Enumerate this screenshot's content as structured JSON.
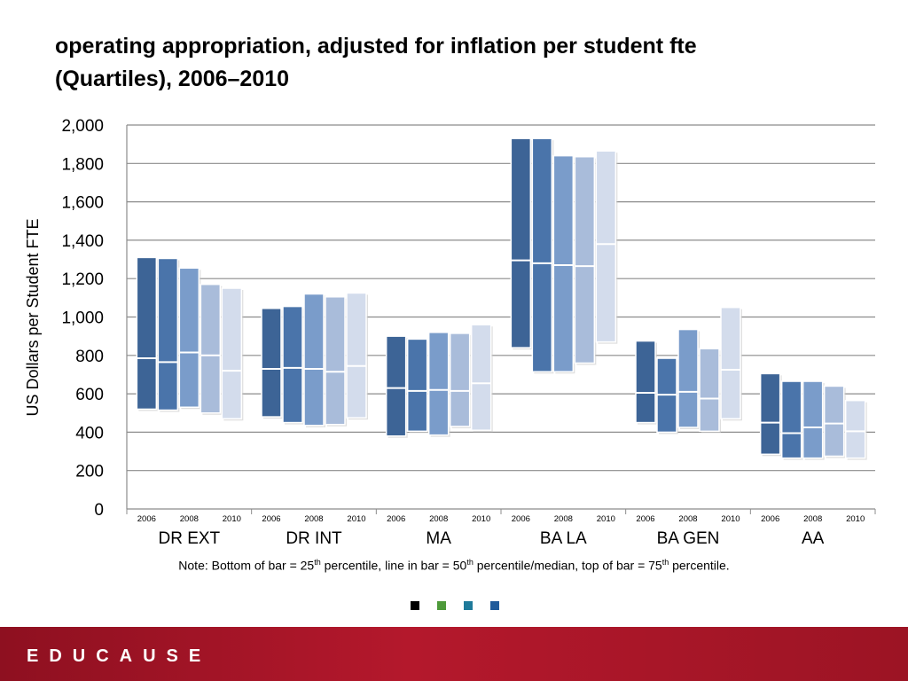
{
  "slide": {
    "title_line1": "operating appropriation, adjusted for inflation per student fte",
    "title_line2": "(Quartiles), 2006–2010",
    "note": {
      "prefix": "Note:  Bottom of bar = 25",
      "sup1": "th",
      "mid1": " percentile, line in bar = 50",
      "sup2": "th",
      "mid2": " percentile/median, top of bar = 75",
      "sup3": "th",
      "suffix": " percentile."
    },
    "legend_colors": [
      "#000000",
      "#4e9a3a",
      "#1f7a9a",
      "#1f5a9a"
    ],
    "footer_logo": "EDUCAUSE",
    "footer_color": "#b4182c"
  },
  "chart_data": {
    "type": "box",
    "ylabel": "US Dollars per Student FTE",
    "ylim": [
      0,
      2000
    ],
    "yticks": [
      0,
      200,
      400,
      600,
      800,
      1000,
      1200,
      1400,
      1600,
      1800,
      2000
    ],
    "ytick_labels": [
      "0",
      "200",
      "400",
      "600",
      "800",
      "1,000",
      "1,200",
      "1,400",
      "1,600",
      "1,800",
      "2,000"
    ],
    "grid": true,
    "year_colors": [
      "#3d6496",
      "#4a74aa",
      "#7a9cca",
      "#a9bcda",
      "#d3dcec"
    ],
    "groups": [
      {
        "name": "DR EXT",
        "year_labels": [
          "2006",
          "2008",
          "2010"
        ],
        "bars": [
          {
            "year": "2006",
            "q1": 520,
            "median": 785,
            "q3": 1310
          },
          {
            "year": "2007",
            "q1": 515,
            "median": 765,
            "q3": 1305
          },
          {
            "year": "2008",
            "q1": 530,
            "median": 815,
            "q3": 1255
          },
          {
            "year": "2009",
            "q1": 500,
            "median": 800,
            "q3": 1170
          },
          {
            "year": "2010",
            "q1": 470,
            "median": 720,
            "q3": 1150
          }
        ]
      },
      {
        "name": "DR INT",
        "year_labels": [
          "2006",
          "2008",
          "2010"
        ],
        "bars": [
          {
            "year": "2006",
            "q1": 480,
            "median": 730,
            "q3": 1045
          },
          {
            "year": "2007",
            "q1": 450,
            "median": 735,
            "q3": 1055
          },
          {
            "year": "2008",
            "q1": 435,
            "median": 730,
            "q3": 1120
          },
          {
            "year": "2009",
            "q1": 440,
            "median": 715,
            "q3": 1105
          },
          {
            "year": "2010",
            "q1": 475,
            "median": 745,
            "q3": 1125
          }
        ]
      },
      {
        "name": "MA",
        "year_labels": [
          "2006",
          "2008",
          "2010"
        ],
        "bars": [
          {
            "year": "2006",
            "q1": 380,
            "median": 630,
            "q3": 900
          },
          {
            "year": "2007",
            "q1": 405,
            "median": 615,
            "q3": 885
          },
          {
            "year": "2008",
            "q1": 385,
            "median": 620,
            "q3": 920
          },
          {
            "year": "2009",
            "q1": 430,
            "median": 615,
            "q3": 915
          },
          {
            "year": "2010",
            "q1": 410,
            "median": 655,
            "q3": 960
          }
        ]
      },
      {
        "name": "BA LA",
        "year_labels": [
          "2006",
          "2008",
          "2010"
        ],
        "bars": [
          {
            "year": "2006",
            "q1": 840,
            "median": 1295,
            "q3": 1930
          },
          {
            "year": "2007",
            "q1": 715,
            "median": 1280,
            "q3": 1930
          },
          {
            "year": "2008",
            "q1": 715,
            "median": 1270,
            "q3": 1840
          },
          {
            "year": "2009",
            "q1": 760,
            "median": 1265,
            "q3": 1835
          },
          {
            "year": "2010",
            "q1": 870,
            "median": 1380,
            "q3": 1865
          }
        ]
      },
      {
        "name": "BA GEN",
        "year_labels": [
          "2006",
          "2008",
          "2010"
        ],
        "bars": [
          {
            "year": "2006",
            "q1": 450,
            "median": 605,
            "q3": 875
          },
          {
            "year": "2007",
            "q1": 400,
            "median": 595,
            "q3": 785
          },
          {
            "year": "2008",
            "q1": 425,
            "median": 610,
            "q3": 935
          },
          {
            "year": "2009",
            "q1": 405,
            "median": 575,
            "q3": 835
          },
          {
            "year": "2010",
            "q1": 470,
            "median": 725,
            "q3": 1050
          }
        ]
      },
      {
        "name": "AA",
        "year_labels": [
          "2006",
          "2008",
          "2010"
        ],
        "bars": [
          {
            "year": "2006",
            "q1": 285,
            "median": 450,
            "q3": 705
          },
          {
            "year": "2007",
            "q1": 265,
            "median": 395,
            "q3": 665
          },
          {
            "year": "2008",
            "q1": 265,
            "median": 425,
            "q3": 665
          },
          {
            "year": "2009",
            "q1": 275,
            "median": 445,
            "q3": 640
          },
          {
            "year": "2010",
            "q1": 265,
            "median": 405,
            "q3": 565
          }
        ]
      }
    ]
  }
}
